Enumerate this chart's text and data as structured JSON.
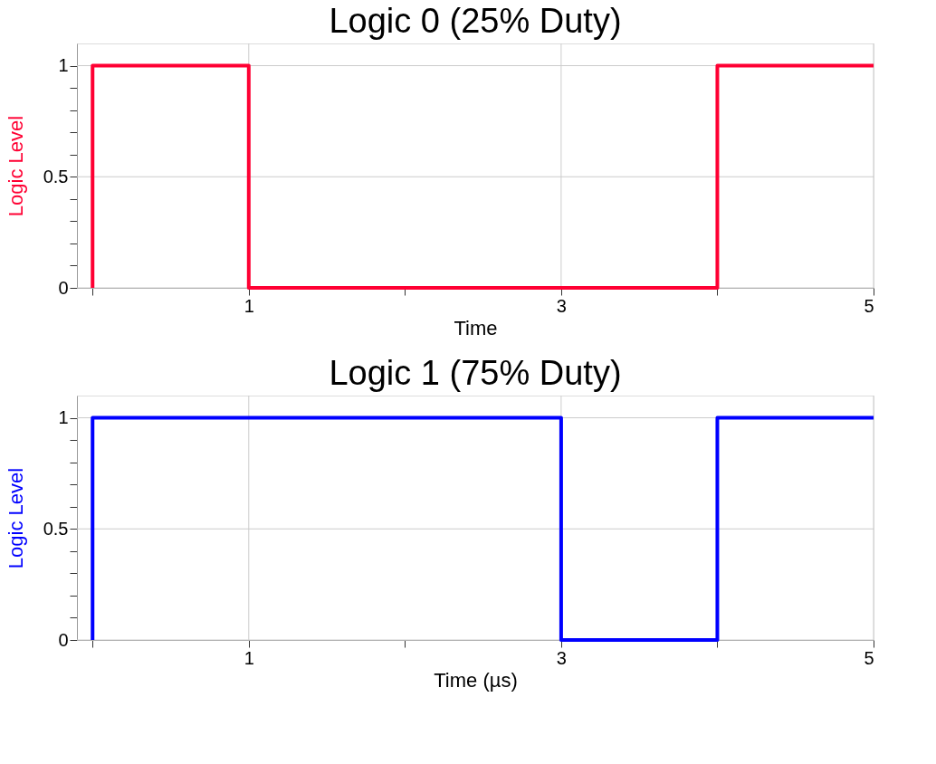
{
  "chart_data": [
    {
      "type": "line",
      "title": "Logic 0 (25% Duty)",
      "xlabel": "Time",
      "ylabel": "Logic Level",
      "xlim": [
        -0.1,
        5
      ],
      "ylim": [
        0,
        1.1
      ],
      "xticks": [
        {
          "value": 0,
          "label": null
        },
        1,
        {
          "value": 2,
          "label": null
        },
        3,
        {
          "value": 4,
          "label": null
        },
        5
      ],
      "yticks": [
        0,
        {
          "value": 0.1,
          "label": null
        },
        {
          "value": 0.2,
          "label": null
        },
        {
          "value": 0.3,
          "label": null
        },
        {
          "value": 0.4,
          "label": null
        },
        0.5,
        {
          "value": 0.6,
          "label": null
        },
        {
          "value": 0.7,
          "label": null
        },
        {
          "value": 0.8,
          "label": null
        },
        {
          "value": 0.9,
          "label": null
        },
        1
      ],
      "grid": true,
      "legend": false,
      "marker": "none",
      "line_style": "solid",
      "series": [
        {
          "color": "#ff0033",
          "x": [
            0,
            0,
            1,
            1,
            4,
            4,
            5
          ],
          "values": [
            0,
            1,
            1,
            0,
            0,
            1,
            1
          ]
        }
      ]
    },
    {
      "type": "line",
      "title": "Logic 1 (75% Duty)",
      "xlabel": "Time (µs)",
      "ylabel": "Logic Level",
      "xlim": [
        -0.1,
        5
      ],
      "ylim": [
        0,
        1.1
      ],
      "xticks": [
        {
          "value": 0,
          "label": null
        },
        1,
        {
          "value": 2,
          "label": null
        },
        3,
        {
          "value": 4,
          "label": null
        },
        5
      ],
      "yticks": [
        0,
        {
          "value": 0.1,
          "label": null
        },
        {
          "value": 0.2,
          "label": null
        },
        {
          "value": 0.3,
          "label": null
        },
        {
          "value": 0.4,
          "label": null
        },
        0.5,
        {
          "value": 0.6,
          "label": null
        },
        {
          "value": 0.7,
          "label": null
        },
        {
          "value": 0.8,
          "label": null
        },
        {
          "value": 0.9,
          "label": null
        },
        1
      ],
      "grid": true,
      "legend": false,
      "marker": "none",
      "line_style": "solid",
      "series": [
        {
          "color": "#0000ff",
          "x": [
            0,
            0,
            3,
            3,
            4,
            4,
            5
          ],
          "values": [
            0,
            1,
            1,
            0,
            0,
            1,
            1
          ]
        }
      ]
    }
  ]
}
